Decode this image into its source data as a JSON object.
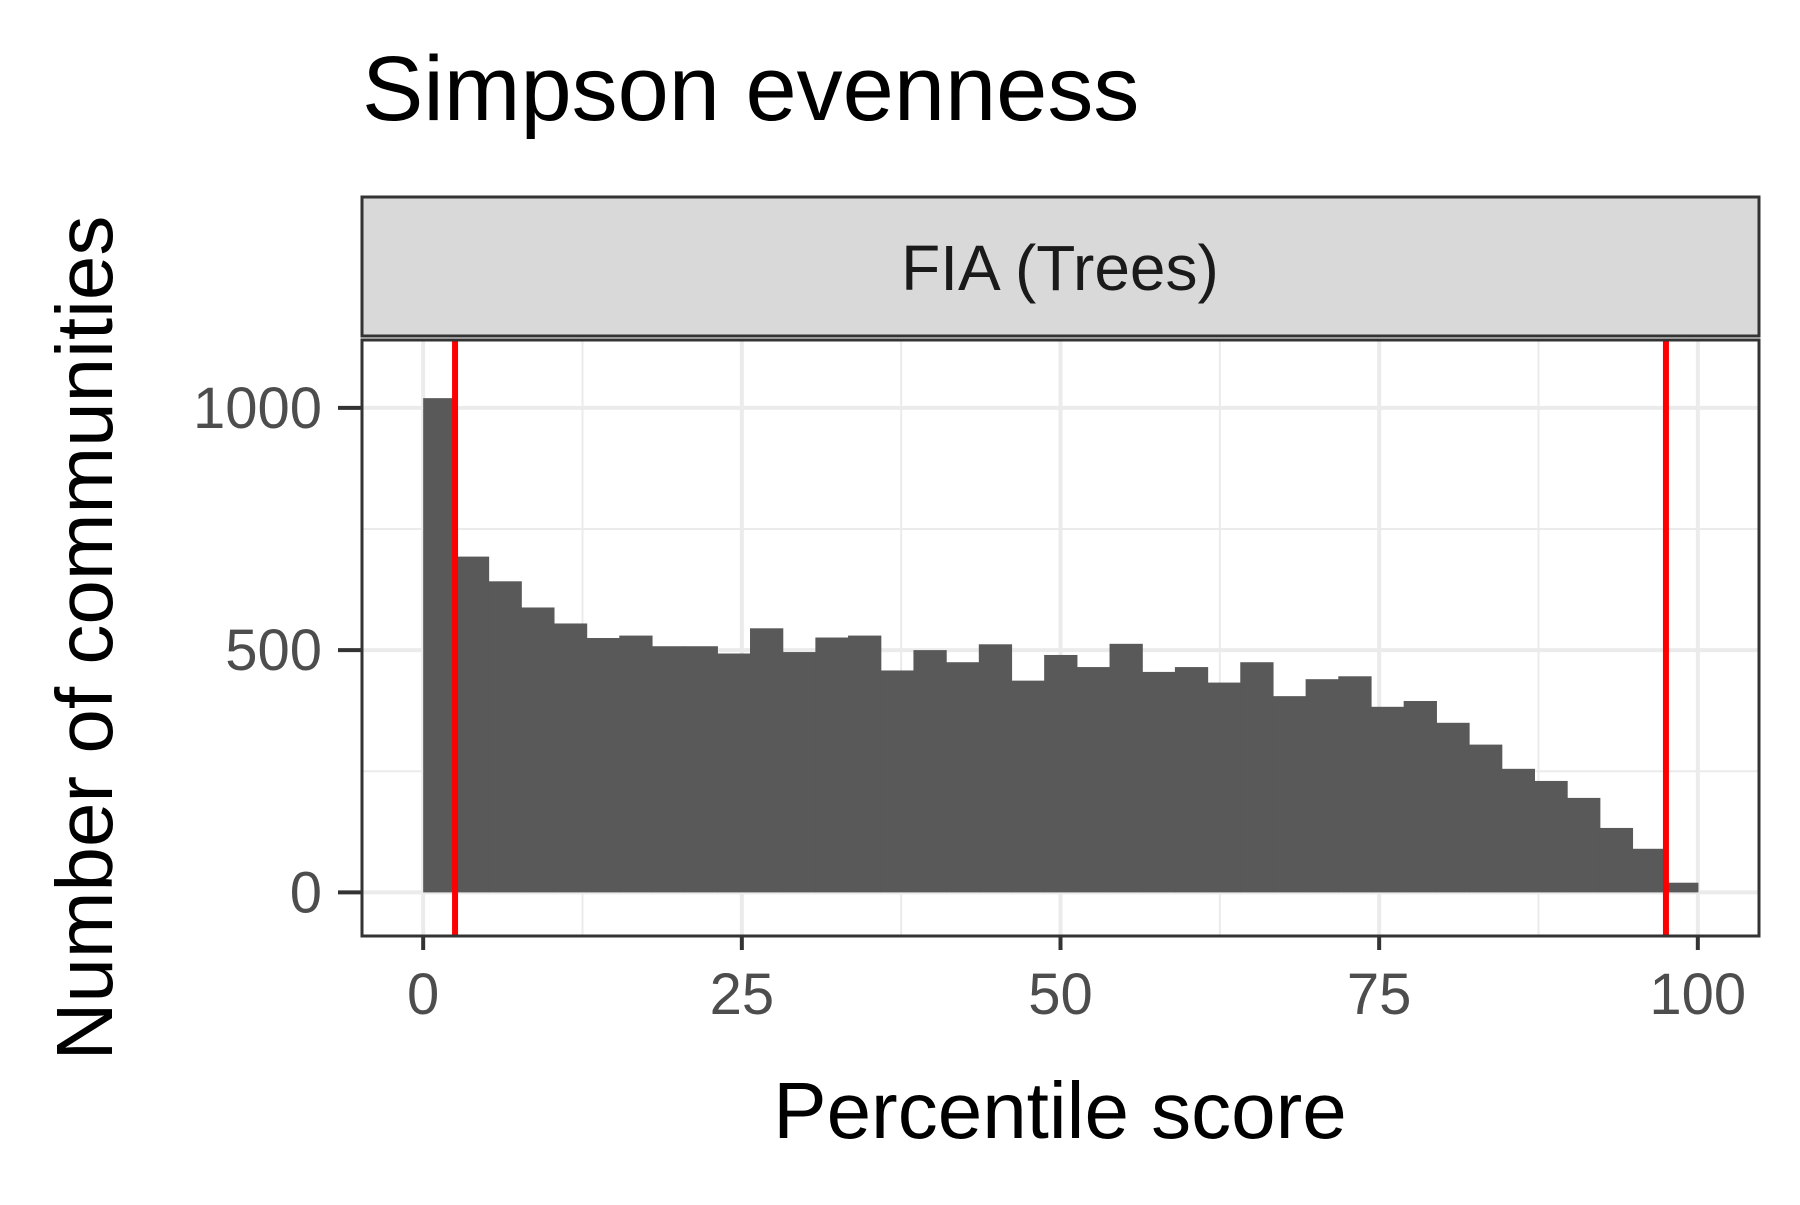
{
  "chart_data": {
    "type": "bar",
    "title": "Simpson evenness",
    "facet_label": "FIA (Trees)",
    "xlabel": "Percentile score",
    "ylabel": "Number of communities",
    "xlim": [
      -4.8,
      104.8
    ],
    "ylim": [
      -90,
      1140
    ],
    "x_ticks": [
      0,
      25,
      50,
      75,
      100
    ],
    "x_tick_labels": [
      "0",
      "25",
      "50",
      "75",
      "100"
    ],
    "x_minor_ticks": [
      12.5,
      37.5,
      62.5,
      87.5
    ],
    "y_ticks": [
      0,
      500,
      1000
    ],
    "y_tick_labels": [
      "0",
      "500",
      "1000"
    ],
    "y_minor_ticks": [
      250,
      750
    ],
    "grid": true,
    "bin_width": 2.564,
    "bars": [
      {
        "x": 1.282,
        "value": 1020
      },
      {
        "x": 3.846,
        "value": 693
      },
      {
        "x": 6.41,
        "value": 642
      },
      {
        "x": 8.974,
        "value": 588
      },
      {
        "x": 11.538,
        "value": 555
      },
      {
        "x": 14.103,
        "value": 525
      },
      {
        "x": 16.667,
        "value": 530
      },
      {
        "x": 19.231,
        "value": 508
      },
      {
        "x": 21.795,
        "value": 508
      },
      {
        "x": 24.359,
        "value": 493
      },
      {
        "x": 26.923,
        "value": 545
      },
      {
        "x": 29.487,
        "value": 496
      },
      {
        "x": 32.051,
        "value": 526
      },
      {
        "x": 34.615,
        "value": 530
      },
      {
        "x": 37.179,
        "value": 458
      },
      {
        "x": 39.744,
        "value": 500
      },
      {
        "x": 42.308,
        "value": 475
      },
      {
        "x": 44.872,
        "value": 512
      },
      {
        "x": 47.436,
        "value": 437
      },
      {
        "x": 50.0,
        "value": 490
      },
      {
        "x": 52.564,
        "value": 465
      },
      {
        "x": 55.128,
        "value": 513
      },
      {
        "x": 57.692,
        "value": 455
      },
      {
        "x": 60.256,
        "value": 465
      },
      {
        "x": 62.821,
        "value": 433
      },
      {
        "x": 65.385,
        "value": 475
      },
      {
        "x": 67.949,
        "value": 405
      },
      {
        "x": 70.513,
        "value": 440
      },
      {
        "x": 73.077,
        "value": 446
      },
      {
        "x": 75.641,
        "value": 383
      },
      {
        "x": 78.205,
        "value": 395
      },
      {
        "x": 80.769,
        "value": 350
      },
      {
        "x": 83.333,
        "value": 305
      },
      {
        "x": 85.897,
        "value": 255
      },
      {
        "x": 88.462,
        "value": 230
      },
      {
        "x": 91.026,
        "value": 195
      },
      {
        "x": 93.59,
        "value": 133
      },
      {
        "x": 96.154,
        "value": 90
      },
      {
        "x": 98.718,
        "value": 20
      }
    ],
    "reference_lines": [
      2.5,
      97.5
    ],
    "colors": {
      "bar": "#595959",
      "reference_line": "#ff0000",
      "strip_fill": "#d9d9d9",
      "panel_border": "#333333",
      "grid": "#ebebeb",
      "axis_text": "#4d4d4d",
      "title_text": "#000000"
    }
  }
}
